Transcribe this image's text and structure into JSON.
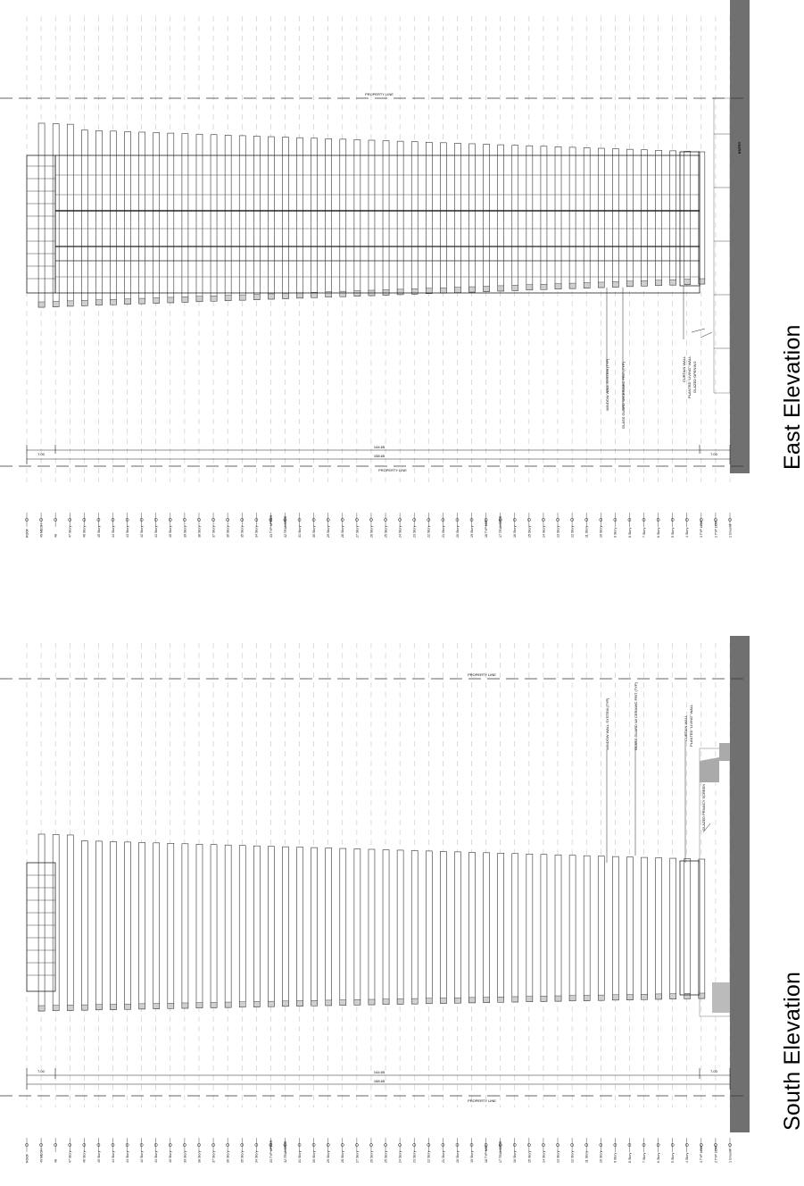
{
  "drawings": [
    {
      "id": "east",
      "title": "East Elevation",
      "property_line_label": "PROPERTY LINE",
      "dimensions": {
        "left": "7.00",
        "middle": "144.65",
        "right": "7.00",
        "overall": "158.65"
      },
      "annotations": [
        "WINDOW WALL SYSTEM (TYP)",
        "GLASS GUARD W/CERAMIC FRIT (TYP)",
        "CURTAIN WALL",
        "PLANTED \"LIVING\" WALL",
        "GLAZED OPENING"
      ],
      "entry_label": "ENTRY"
    },
    {
      "id": "south",
      "title": "South Elevation",
      "property_line_label": "PROPERTY LINE",
      "dimensions": {
        "left": "7.00",
        "middle": "144.65",
        "right": "7.00",
        "overall": "158.65"
      },
      "annotations": [
        "WINDOW WALL SYSTEM (TYP)",
        "GLASS GUARD W/ CERAMIC FRIT (TYP)",
        "CURTAIN WALL",
        "PLANTED \"LIVING\" WALL",
        "GLAZED PRIVACY SCREEN"
      ]
    }
  ],
  "level_labels": [
    "1 Ground",
    "2 TYP LOW",
    "3 TYP LOW",
    "4 Story",
    "5 Story",
    "6 Story",
    "7 Story",
    "8 Story",
    "9 Story",
    "10 Story",
    "11 Story",
    "12 Story",
    "13 Story",
    "14 Story",
    "15 Story",
    "16 Story",
    "17 TRANSFER",
    "18 TYP MID",
    "19 Story",
    "20 Story",
    "21 Story",
    "22 Story",
    "23 Story",
    "24 Story",
    "25 Story",
    "26 Story",
    "27 Story",
    "28 Story",
    "29 Story",
    "30 Story",
    "31 Story",
    "32 TRANSFER",
    "33 TYP UPPER",
    "34 Story",
    "35 Story",
    "36 Story",
    "37 Story",
    "38 Story",
    "39 Story",
    "40 Story",
    "41 Story",
    "42 Story",
    "43 Story",
    "44 Story",
    "45 Story",
    "46 Story",
    "47 Story",
    "48",
    "49 MECH",
    "ROOF"
  ],
  "colors": {
    "ground": "#707070",
    "line": "#222222",
    "grid": "#bbbbbb",
    "fill": "#d8d8d8"
  }
}
